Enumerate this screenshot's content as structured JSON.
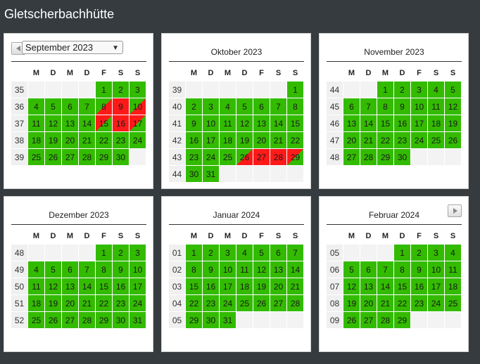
{
  "app_title": "Gletscherbachhütte",
  "weekday_headers": [
    "M",
    "D",
    "M",
    "D",
    "F",
    "S",
    "S"
  ],
  "nav": {
    "prev_icon": "chevron-left-icon",
    "next_icon": "chevron-right-icon"
  },
  "colors": {
    "available": "#33bb00",
    "booked": "#ff1a1a",
    "background": "#353b3f"
  },
  "months": [
    {
      "label": "September 2023",
      "selector": true,
      "weeks": [
        {
          "wk": "35",
          "days": [
            [
              "",
              "e"
            ],
            [
              "",
              "e"
            ],
            [
              "",
              "e"
            ],
            [
              "",
              "e"
            ],
            [
              "1",
              "g"
            ],
            [
              "2",
              "g"
            ],
            [
              "3",
              "g"
            ]
          ]
        },
        {
          "wk": "36",
          "days": [
            [
              "4",
              "g"
            ],
            [
              "5",
              "g"
            ],
            [
              "6",
              "g"
            ],
            [
              "7",
              "g"
            ],
            [
              "8",
              "dgr"
            ],
            [
              "9",
              "r"
            ],
            [
              "10",
              "dgr"
            ]
          ]
        },
        {
          "wk": "37",
          "days": [
            [
              "11",
              "g"
            ],
            [
              "12",
              "g"
            ],
            [
              "13",
              "g"
            ],
            [
              "14",
              "g"
            ],
            [
              "15",
              "drg"
            ],
            [
              "16",
              "r"
            ],
            [
              "17",
              "drg"
            ]
          ]
        },
        {
          "wk": "38",
          "days": [
            [
              "18",
              "g"
            ],
            [
              "19",
              "g"
            ],
            [
              "20",
              "g"
            ],
            [
              "21",
              "g"
            ],
            [
              "22",
              "g"
            ],
            [
              "23",
              "g"
            ],
            [
              "24",
              "g"
            ]
          ]
        },
        {
          "wk": "39",
          "days": [
            [
              "25",
              "g"
            ],
            [
              "26",
              "g"
            ],
            [
              "27",
              "g"
            ],
            [
              "28",
              "g"
            ],
            [
              "29",
              "g"
            ],
            [
              "30",
              "g"
            ],
            [
              "",
              "e"
            ]
          ]
        }
      ]
    },
    {
      "label": "Oktober 2023",
      "weeks": [
        {
          "wk": "39",
          "days": [
            [
              "",
              "e"
            ],
            [
              "",
              "e"
            ],
            [
              "",
              "e"
            ],
            [
              "",
              "e"
            ],
            [
              "",
              "e"
            ],
            [
              "",
              "e"
            ],
            [
              "1",
              "g"
            ]
          ]
        },
        {
          "wk": "40",
          "days": [
            [
              "2",
              "g"
            ],
            [
              "3",
              "g"
            ],
            [
              "4",
              "g"
            ],
            [
              "5",
              "g"
            ],
            [
              "6",
              "g"
            ],
            [
              "7",
              "g"
            ],
            [
              "8",
              "g"
            ]
          ]
        },
        {
          "wk": "41",
          "days": [
            [
              "9",
              "g"
            ],
            [
              "10",
              "g"
            ],
            [
              "11",
              "g"
            ],
            [
              "12",
              "g"
            ],
            [
              "13",
              "g"
            ],
            [
              "14",
              "g"
            ],
            [
              "15",
              "g"
            ]
          ]
        },
        {
          "wk": "42",
          "days": [
            [
              "16",
              "g"
            ],
            [
              "17",
              "g"
            ],
            [
              "18",
              "g"
            ],
            [
              "19",
              "g"
            ],
            [
              "20",
              "g"
            ],
            [
              "21",
              "g"
            ],
            [
              "22",
              "g"
            ]
          ]
        },
        {
          "wk": "43",
          "days": [
            [
              "23",
              "g"
            ],
            [
              "24",
              "g"
            ],
            [
              "25",
              "g"
            ],
            [
              "26",
              "dgr"
            ],
            [
              "27",
              "r"
            ],
            [
              "28",
              "r"
            ],
            [
              "29",
              "drg"
            ]
          ]
        },
        {
          "wk": "44",
          "days": [
            [
              "30",
              "g"
            ],
            [
              "31",
              "g"
            ],
            [
              "",
              "e"
            ],
            [
              "",
              "e"
            ],
            [
              "",
              "e"
            ],
            [
              "",
              "e"
            ],
            [
              "",
              "e"
            ]
          ]
        }
      ]
    },
    {
      "label": "November 2023",
      "weeks": [
        {
          "wk": "44",
          "days": [
            [
              "",
              "e"
            ],
            [
              "",
              "e"
            ],
            [
              "1",
              "g"
            ],
            [
              "2",
              "g"
            ],
            [
              "3",
              "g"
            ],
            [
              "4",
              "g"
            ],
            [
              "5",
              "g"
            ]
          ]
        },
        {
          "wk": "45",
          "days": [
            [
              "6",
              "g"
            ],
            [
              "7",
              "g"
            ],
            [
              "8",
              "g"
            ],
            [
              "9",
              "g"
            ],
            [
              "10",
              "g"
            ],
            [
              "11",
              "g"
            ],
            [
              "12",
              "g"
            ]
          ]
        },
        {
          "wk": "46",
          "days": [
            [
              "13",
              "g"
            ],
            [
              "14",
              "g"
            ],
            [
              "15",
              "g"
            ],
            [
              "16",
              "g"
            ],
            [
              "17",
              "g"
            ],
            [
              "18",
              "g"
            ],
            [
              "19",
              "g"
            ]
          ]
        },
        {
          "wk": "47",
          "days": [
            [
              "20",
              "g"
            ],
            [
              "21",
              "g"
            ],
            [
              "22",
              "g"
            ],
            [
              "23",
              "g"
            ],
            [
              "24",
              "g"
            ],
            [
              "25",
              "g"
            ],
            [
              "26",
              "g"
            ]
          ]
        },
        {
          "wk": "48",
          "days": [
            [
              "27",
              "g"
            ],
            [
              "28",
              "g"
            ],
            [
              "29",
              "g"
            ],
            [
              "30",
              "g"
            ],
            [
              "",
              "e"
            ],
            [
              "",
              "e"
            ],
            [
              "",
              "e"
            ]
          ]
        }
      ]
    },
    {
      "label": "Dezember 2023",
      "weeks": [
        {
          "wk": "48",
          "days": [
            [
              "",
              "e"
            ],
            [
              "",
              "e"
            ],
            [
              "",
              "e"
            ],
            [
              "",
              "e"
            ],
            [
              "1",
              "g"
            ],
            [
              "2",
              "g"
            ],
            [
              "3",
              "g"
            ]
          ]
        },
        {
          "wk": "49",
          "days": [
            [
              "4",
              "g"
            ],
            [
              "5",
              "g"
            ],
            [
              "6",
              "g"
            ],
            [
              "7",
              "g"
            ],
            [
              "8",
              "g"
            ],
            [
              "9",
              "g"
            ],
            [
              "10",
              "g"
            ]
          ]
        },
        {
          "wk": "50",
          "days": [
            [
              "11",
              "g"
            ],
            [
              "12",
              "g"
            ],
            [
              "13",
              "g"
            ],
            [
              "14",
              "g"
            ],
            [
              "15",
              "g"
            ],
            [
              "16",
              "g"
            ],
            [
              "17",
              "g"
            ]
          ]
        },
        {
          "wk": "51",
          "days": [
            [
              "18",
              "g"
            ],
            [
              "19",
              "g"
            ],
            [
              "20",
              "g"
            ],
            [
              "21",
              "g"
            ],
            [
              "22",
              "g"
            ],
            [
              "23",
              "g"
            ],
            [
              "24",
              "g"
            ]
          ]
        },
        {
          "wk": "52",
          "days": [
            [
              "25",
              "g"
            ],
            [
              "26",
              "g"
            ],
            [
              "27",
              "g"
            ],
            [
              "28",
              "g"
            ],
            [
              "29",
              "g"
            ],
            [
              "30",
              "g"
            ],
            [
              "31",
              "g"
            ]
          ]
        }
      ]
    },
    {
      "label": "Januar 2024",
      "weeks": [
        {
          "wk": "01",
          "days": [
            [
              "1",
              "g"
            ],
            [
              "2",
              "g"
            ],
            [
              "3",
              "g"
            ],
            [
              "4",
              "g"
            ],
            [
              "5",
              "g"
            ],
            [
              "6",
              "g"
            ],
            [
              "7",
              "g"
            ]
          ]
        },
        {
          "wk": "02",
          "days": [
            [
              "8",
              "g"
            ],
            [
              "9",
              "g"
            ],
            [
              "10",
              "g"
            ],
            [
              "11",
              "g"
            ],
            [
              "12",
              "g"
            ],
            [
              "13",
              "g"
            ],
            [
              "14",
              "g"
            ]
          ]
        },
        {
          "wk": "03",
          "days": [
            [
              "15",
              "g"
            ],
            [
              "16",
              "g"
            ],
            [
              "17",
              "g"
            ],
            [
              "18",
              "g"
            ],
            [
              "19",
              "g"
            ],
            [
              "20",
              "g"
            ],
            [
              "21",
              "g"
            ]
          ]
        },
        {
          "wk": "04",
          "days": [
            [
              "22",
              "g"
            ],
            [
              "23",
              "g"
            ],
            [
              "24",
              "g"
            ],
            [
              "25",
              "g"
            ],
            [
              "26",
              "g"
            ],
            [
              "27",
              "g"
            ],
            [
              "28",
              "g"
            ]
          ]
        },
        {
          "wk": "05",
          "days": [
            [
              "29",
              "g"
            ],
            [
              "30",
              "g"
            ],
            [
              "31",
              "g"
            ],
            [
              "",
              "e"
            ],
            [
              "",
              "e"
            ],
            [
              "",
              "e"
            ],
            [
              "",
              "e"
            ]
          ]
        }
      ]
    },
    {
      "label": "Februar 2024",
      "weeks": [
        {
          "wk": "05",
          "days": [
            [
              "",
              "e"
            ],
            [
              "",
              "e"
            ],
            [
              "",
              "e"
            ],
            [
              "1",
              "g"
            ],
            [
              "2",
              "g"
            ],
            [
              "3",
              "g"
            ],
            [
              "4",
              "g"
            ]
          ]
        },
        {
          "wk": "06",
          "days": [
            [
              "5",
              "g"
            ],
            [
              "6",
              "g"
            ],
            [
              "7",
              "g"
            ],
            [
              "8",
              "g"
            ],
            [
              "9",
              "g"
            ],
            [
              "10",
              "g"
            ],
            [
              "11",
              "g"
            ]
          ]
        },
        {
          "wk": "07",
          "days": [
            [
              "12",
              "g"
            ],
            [
              "13",
              "g"
            ],
            [
              "14",
              "g"
            ],
            [
              "15",
              "g"
            ],
            [
              "16",
              "g"
            ],
            [
              "17",
              "g"
            ],
            [
              "18",
              "g"
            ]
          ]
        },
        {
          "wk": "08",
          "days": [
            [
              "19",
              "g"
            ],
            [
              "20",
              "g"
            ],
            [
              "21",
              "g"
            ],
            [
              "22",
              "g"
            ],
            [
              "23",
              "g"
            ],
            [
              "24",
              "g"
            ],
            [
              "25",
              "g"
            ]
          ]
        },
        {
          "wk": "09",
          "days": [
            [
              "26",
              "g"
            ],
            [
              "27",
              "g"
            ],
            [
              "28",
              "g"
            ],
            [
              "29",
              "g"
            ],
            [
              "",
              "e"
            ],
            [
              "",
              "e"
            ],
            [
              "",
              "e"
            ]
          ]
        }
      ]
    }
  ]
}
